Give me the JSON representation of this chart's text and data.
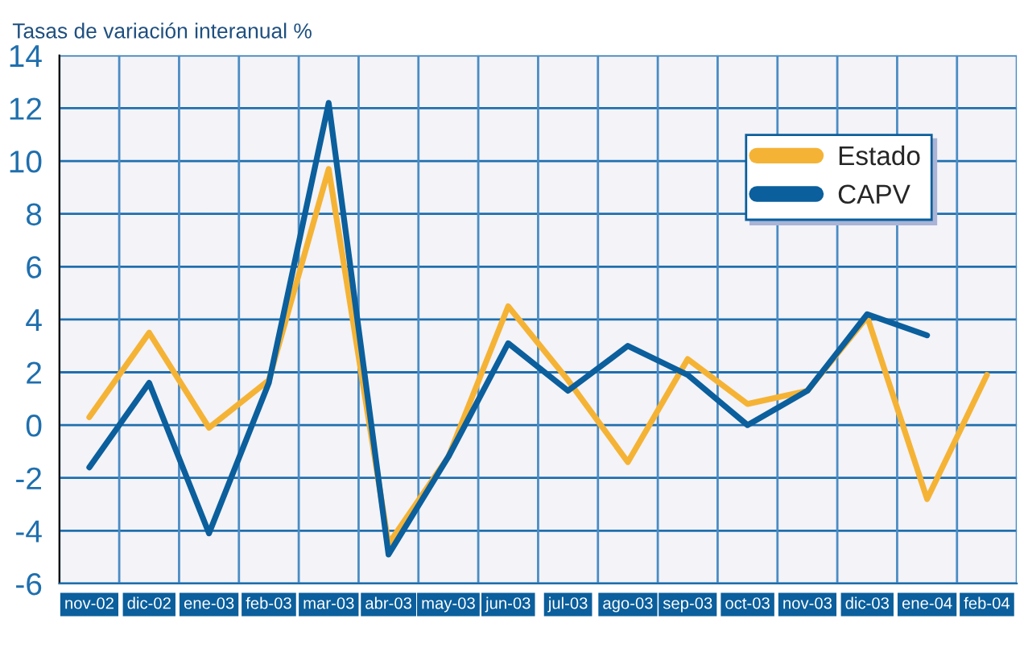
{
  "chart_data": {
    "type": "line",
    "title": "Tasas de variación interanual %",
    "categories": [
      "nov-02",
      "dic-02",
      "ene-03",
      "feb-03",
      "mar-03",
      "abr-03",
      "may-03",
      "jun-03",
      "jul-03",
      "ago-03",
      "sep-03",
      "oct-03",
      "nov-03",
      "dic-03",
      "ene-04",
      "feb-04"
    ],
    "series": [
      {
        "name": "Estado",
        "color": "#f5b335",
        "values": [
          0.3,
          3.5,
          -0.1,
          1.7,
          9.7,
          -4.5,
          -1.2,
          4.5,
          1.7,
          -1.4,
          2.5,
          0.8,
          1.3,
          4.1,
          -2.8,
          1.9
        ]
      },
      {
        "name": "CAPV",
        "color": "#0b5f9c",
        "values": [
          -1.6,
          1.6,
          -4.1,
          1.6,
          12.2,
          -4.9,
          -1.2,
          3.1,
          1.3,
          3.0,
          1.9,
          0.0,
          1.3,
          4.2,
          3.4,
          null
        ]
      }
    ],
    "ylim": [
      -6,
      14
    ],
    "yticks": [
      -6,
      -4,
      -2,
      0,
      2,
      4,
      6,
      8,
      10,
      12,
      14
    ],
    "grid": true,
    "legend": "top right",
    "line_style": "solid",
    "marker": "none"
  }
}
